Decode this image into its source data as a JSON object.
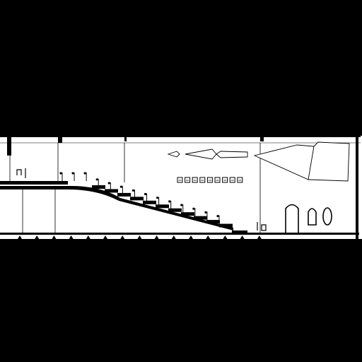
{
  "drawing": {
    "kind": "architectural longitudinal section",
    "colors": {
      "background": "#000000",
      "paper": "#ffffff",
      "line": "#000000"
    },
    "elements": {
      "exhibit_models": [
        "small-arrowhead",
        "medium-arrowhead",
        "long-arrowhead",
        "large-arrowhead"
      ],
      "wall_display_count": 9,
      "stair_steps": 11,
      "doorways": [
        "tall-arched-door",
        "small-arched-door",
        "small-oval-door"
      ],
      "railing_posts": 14
    }
  }
}
